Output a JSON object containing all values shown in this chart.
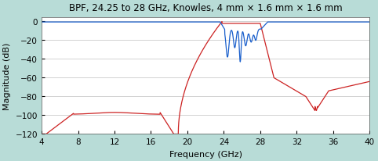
{
  "title": "BPF, 24.25 to 28 GHz, Knowles, 4 mm × 1.6 mm × 1.6 mm",
  "xlabel": "Frequency (GHz)",
  "ylabel": "Magnitude (dB)",
  "xlim": [
    4,
    40
  ],
  "ylim": [
    -120,
    5
  ],
  "xticks": [
    4,
    8,
    12,
    16,
    20,
    24,
    28,
    32,
    36,
    40
  ],
  "yticks": [
    0,
    -20,
    -40,
    -60,
    -80,
    -100,
    -120
  ],
  "background_color": "#b8dcd7",
  "plot_bg_color": "#ffffff",
  "line_color_S21": "#1a5fcc",
  "line_color_S11": "#cc2222",
  "title_fontsize": 8.5,
  "label_fontsize": 8
}
